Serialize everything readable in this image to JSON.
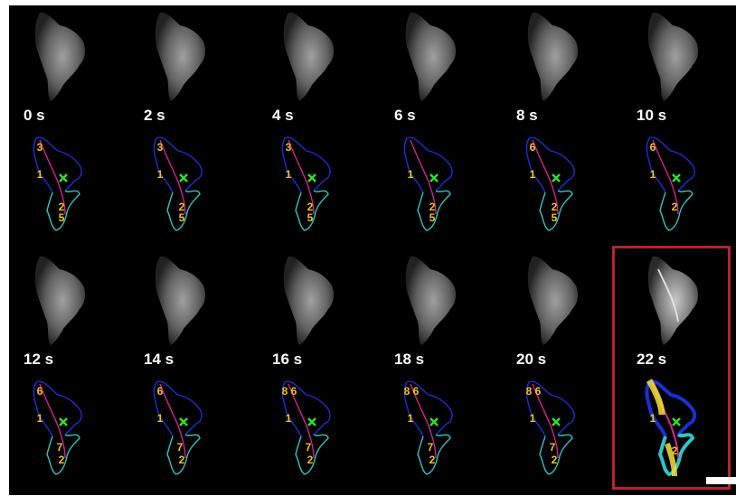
{
  "figure": {
    "panels": [
      {
        "time": "0 s",
        "labels": [
          "3",
          "1",
          "2",
          "5"
        ]
      },
      {
        "time": "2 s",
        "labels": [
          "3",
          "1",
          "2",
          "5"
        ]
      },
      {
        "time": "4 s",
        "labels": [
          "3",
          "1",
          "2",
          "5"
        ]
      },
      {
        "time": "6 s",
        "labels": [
          "1",
          "2",
          "5"
        ]
      },
      {
        "time": "8 s",
        "labels": [
          "6",
          "1",
          "2",
          "5"
        ]
      },
      {
        "time": "10 s",
        "labels": [
          "6",
          "1",
          "2"
        ]
      },
      {
        "time": "12 s",
        "labels": [
          "6",
          "1",
          "7",
          "2"
        ]
      },
      {
        "time": "14 s",
        "labels": [
          "6",
          "1",
          "7",
          "2"
        ]
      },
      {
        "time": "16 s",
        "labels": [
          "8",
          "6",
          "1",
          "7",
          "2"
        ]
      },
      {
        "time": "18 s",
        "labels": [
          "8",
          "6",
          "1",
          "7",
          "2"
        ]
      },
      {
        "time": "20 s",
        "labels": [
          "8",
          "6",
          "1",
          "7",
          "2"
        ]
      },
      {
        "time": "22 s",
        "labels": [
          "1",
          "2"
        ]
      }
    ],
    "colors": {
      "background": "#000000",
      "contour_front": "#1a2fd6",
      "contour_rear": "#2ec4c4",
      "axis_line": "#e0209a",
      "centroid": "#2ee02e",
      "label": "#f2c21a",
      "highlight_frame": "#b5242a",
      "scale_bar": "#ffffff"
    }
  }
}
